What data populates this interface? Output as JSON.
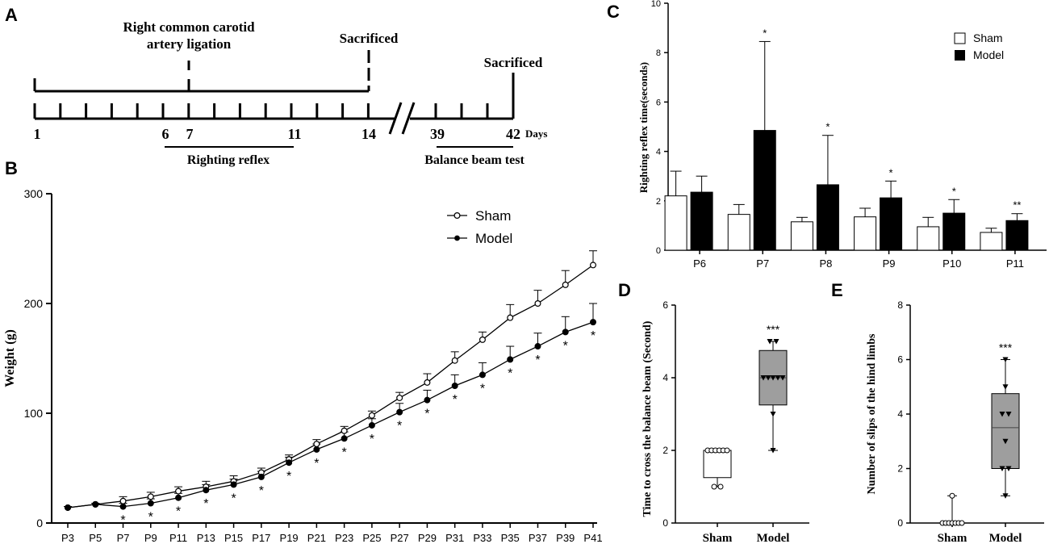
{
  "panels": {
    "a": "A",
    "b": "B",
    "c": "C",
    "d": "D",
    "e": "E"
  },
  "timeline": {
    "ligation_label_1": "Right common carotid",
    "ligation_label_2": "artery ligation",
    "sacrificed_1": "Sacrificed",
    "sacrificed_2": "Sacrificed",
    "days_unit": "Days",
    "tick_day_labels": [
      "1",
      "6",
      "7",
      "11",
      "14",
      "39",
      "42"
    ],
    "righting_reflex": "Righting reflex",
    "balance_beam_test": "Balance beam test"
  },
  "chart_data": [
    {
      "id": "B",
      "type": "line",
      "ylabel": "Weight (g)",
      "xlabel": "",
      "ylim": [
        0,
        300
      ],
      "yticks": [
        "0",
        "100",
        "200",
        "300"
      ],
      "categories": [
        "P3",
        "P5",
        "P7",
        "P9",
        "P11",
        "P13",
        "P15",
        "P17",
        "P19",
        "P21",
        "P23",
        "P25",
        "P27",
        "P29",
        "P31",
        "P33",
        "P35",
        "P37",
        "P39",
        "P41"
      ],
      "series": [
        {
          "name": "Sham",
          "marker": "open-circle",
          "values": [
            14,
            17,
            20,
            24,
            29,
            33,
            38,
            46,
            58,
            72,
            84,
            98,
            114,
            128,
            148,
            167,
            187,
            200,
            217,
            235
          ],
          "errors": [
            1,
            1,
            4,
            4,
            4,
            5,
            5,
            4,
            4,
            4,
            4,
            4,
            5,
            8,
            8,
            7,
            12,
            12,
            13,
            13
          ]
        },
        {
          "name": "Model",
          "marker": "filled-circle",
          "values": [
            14,
            17,
            15,
            18,
            23,
            30,
            35,
            42,
            55,
            67,
            77,
            89,
            101,
            112,
            125,
            135,
            149,
            161,
            174,
            183
          ],
          "errors": [
            1,
            1,
            3,
            4,
            4,
            5,
            5,
            5,
            5,
            5,
            6,
            6,
            8,
            9,
            10,
            11,
            12,
            12,
            14,
            17
          ]
        }
      ],
      "significance": [
        "",
        "",
        "*",
        "*",
        "*",
        "*",
        "*",
        "*",
        "*",
        "*",
        "*",
        "*",
        "*",
        "*",
        "*",
        "*",
        "*",
        "*",
        "*",
        "*"
      ]
    },
    {
      "id": "C",
      "type": "bar",
      "ylabel": "Righting reflex time(seconds)",
      "ylim": [
        0,
        10
      ],
      "yticks": [
        "0",
        "2",
        "4",
        "6",
        "8",
        "10"
      ],
      "categories": [
        "P6",
        "P7",
        "P8",
        "P9",
        "P10",
        "P11"
      ],
      "series": [
        {
          "name": "Sham",
          "fill": "#ffffff",
          "values": [
            2.2,
            1.45,
            1.15,
            1.35,
            0.95,
            0.72
          ],
          "errors": [
            1.0,
            0.4,
            0.18,
            0.35,
            0.38,
            0.17
          ]
        },
        {
          "name": "Model",
          "fill": "#000000",
          "values": [
            2.35,
            4.85,
            2.65,
            2.12,
            1.5,
            1.2
          ],
          "errors": [
            0.65,
            3.6,
            2.0,
            0.68,
            0.55,
            0.28
          ]
        }
      ],
      "significance": [
        "",
        "*",
        "*",
        "*",
        "*",
        "**"
      ]
    },
    {
      "id": "D",
      "type": "box",
      "ylabel": "Time to cross the balance beam (Second)",
      "ylim": [
        0,
        6
      ],
      "yticks": [
        "0",
        "2",
        "4",
        "6"
      ],
      "categories": [
        "Sham",
        "Model"
      ],
      "boxes": [
        {
          "name": "Sham",
          "min": 1,
          "q1": 1.25,
          "median": 2,
          "q3": 2,
          "max": 2,
          "points": [
            1,
            1,
            2,
            2,
            2,
            2,
            2,
            2
          ]
        },
        {
          "name": "Model",
          "min": 2,
          "q1": 3.25,
          "median": 4,
          "q3": 4.75,
          "max": 5,
          "points": [
            2,
            3,
            4,
            4,
            4,
            4,
            4,
            5,
            5
          ]
        }
      ],
      "significance": [
        "",
        "***"
      ]
    },
    {
      "id": "E",
      "type": "box",
      "ylabel": "Number of slips of the hind limbs",
      "ylim": [
        0,
        8
      ],
      "yticks": [
        "0",
        "2",
        "4",
        "6",
        "8"
      ],
      "categories": [
        "Sham",
        "Model"
      ],
      "boxes": [
        {
          "name": "Sham",
          "min": 0,
          "q1": 0,
          "median": 0,
          "q3": 0,
          "max": 1,
          "points": [
            0,
            0,
            0,
            0,
            0,
            0,
            0,
            1
          ]
        },
        {
          "name": "Model",
          "min": 1,
          "q1": 2,
          "median": 3.5,
          "q3": 4.75,
          "max": 6,
          "points": [
            1,
            2,
            2,
            3,
            4,
            4,
            5,
            6
          ]
        }
      ],
      "significance": [
        "",
        "***"
      ]
    }
  ]
}
